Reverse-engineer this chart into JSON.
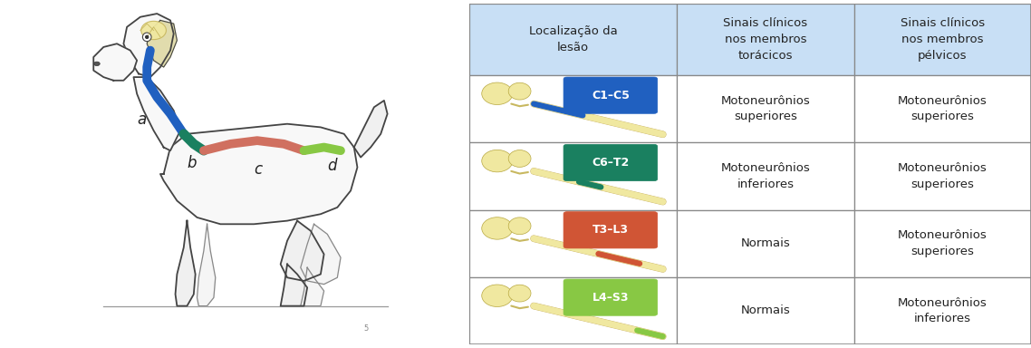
{
  "table_header_bg": "#c8dff5",
  "table_bg": "#ffffff",
  "table_border": "#888888",
  "header_texts": [
    "Localização da\nlesão",
    "Sinais clínicos\nnos membros\ntorácicos",
    "Sinais clínicos\nnos membros\npélvicos"
  ],
  "rows": [
    {
      "label": "C1–C5",
      "label_color": "#2060c0",
      "label_text_color": "#ffffff",
      "spine_color": "#2060c0",
      "col2": "Motoneurônios\nsuperiores",
      "col3": "Motoneurônios\nsuperiores"
    },
    {
      "label": "C6–T2",
      "label_color": "#1a8060",
      "label_text_color": "#ffffff",
      "spine_color": "#1a8060",
      "col2": "Motoneurônios\ninferiores",
      "col3": "Motoneurônios\nsuperiores"
    },
    {
      "label": "T3–L3",
      "label_color": "#d05535",
      "label_text_color": "#ffffff",
      "spine_color": "#d05535",
      "col2": "Normais",
      "col3": "Motoneurônios\nsuperiores"
    },
    {
      "label": "L4–S3",
      "label_color": "#88c844",
      "label_text_color": "#ffffff",
      "spine_color": "#88c844",
      "col2": "Normais",
      "col3": "Motoneurônios\ninferiores"
    }
  ],
  "blue_color": "#2060c0",
  "teal_color": "#1a8060",
  "red_color": "#d07060",
  "green_color": "#88c844",
  "cream_color": "#f0e8a0",
  "bg_color": "#ffffff",
  "text_color": "#222222",
  "font_size_header": 9.5,
  "font_size_cell": 9.5,
  "font_size_label": 9,
  "font_size_dog_label": 12
}
